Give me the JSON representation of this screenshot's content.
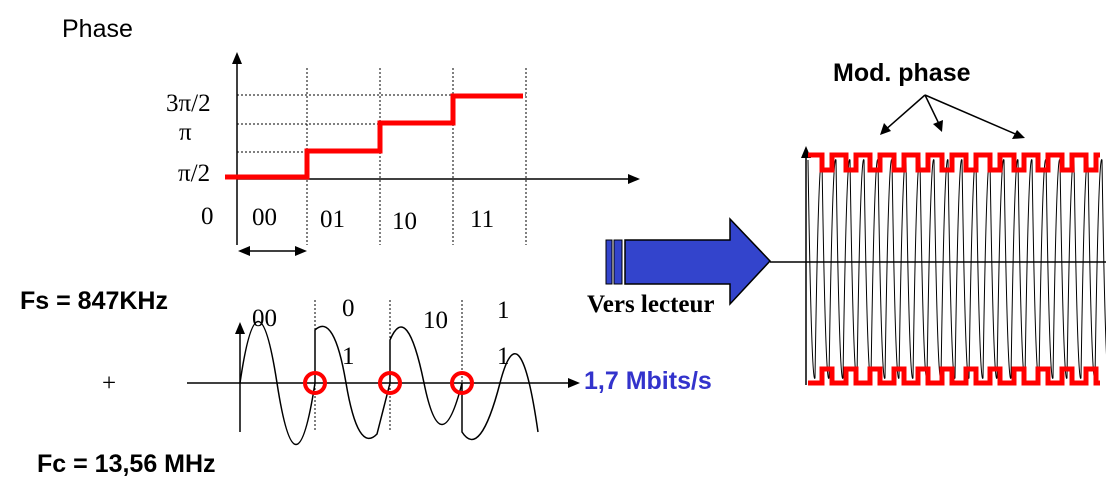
{
  "phase_chart": {
    "title": "Phase",
    "y_labels": [
      "3π/2",
      "π",
      "π/2",
      "0"
    ],
    "x_labels": [
      "00",
      "01",
      "10",
      "11"
    ]
  },
  "subcarrier": {
    "fs_label": "Fs = 847KHz",
    "plus_label": "+",
    "fc_label": "Fc = 13,56 MHz",
    "bits_top": [
      "00",
      "0",
      "10",
      "1"
    ],
    "bits_bottom": [
      "1",
      "1"
    ]
  },
  "arrow": {
    "label": "Vers lecteur",
    "rate": "1,7 Mbits/s"
  },
  "modulated": {
    "title": "Mod. phase"
  },
  "colors": {
    "red": "#ff0000",
    "blue": "#3333cc",
    "arrow_fill": "#3344cc"
  }
}
